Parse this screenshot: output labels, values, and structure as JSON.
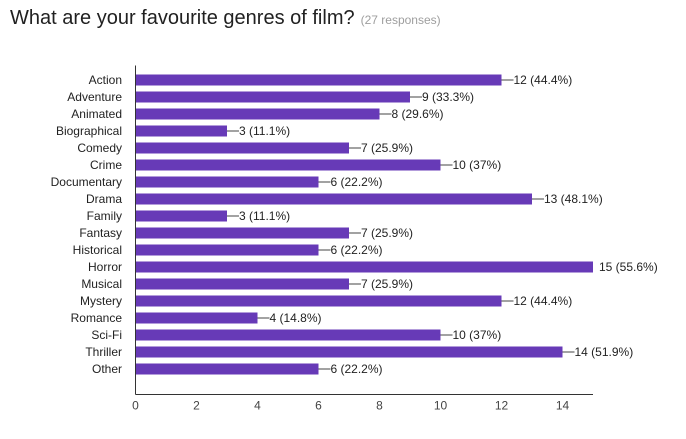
{
  "header": {
    "title": "What are your favourite genres of film?",
    "responses": "(27 responses)"
  },
  "colors": {
    "bar": "#673ab7",
    "axis": "#333333",
    "leader": "#444444"
  },
  "chart_data": {
    "type": "bar",
    "orientation": "horizontal",
    "title": "What are your favourite genres of film?",
    "subtitle": "(27 responses)",
    "xlabel": "",
    "ylabel": "",
    "categories": [
      "Action",
      "Adventure",
      "Animated",
      "Biographical",
      "Comedy",
      "Crime",
      "Documentary",
      "Drama",
      "Family",
      "Fantasy",
      "Historical",
      "Horror",
      "Musical",
      "Mystery",
      "Romance",
      "Sci-Fi",
      "Thriller",
      "Other"
    ],
    "values": [
      12,
      9,
      8,
      3,
      7,
      10,
      6,
      13,
      3,
      7,
      6,
      15,
      7,
      12,
      4,
      10,
      14,
      6
    ],
    "data_labels": [
      "12 (44.4%)",
      "9 (33.3%)",
      "8 (29.6%)",
      "3 (11.1%)",
      "7 (25.9%)",
      "10 (37%)",
      "6 (22.2%)",
      "13 (48.1%)",
      "3 (11.1%)",
      "7 (25.9%)",
      "6 (22.2%)",
      "15 (55.6%)",
      "7 (25.9%)",
      "12 (44.4%)",
      "4 (14.8%)",
      "10 (37%)",
      "14 (51.9%)",
      "6 (22.2%)"
    ],
    "xlim": [
      0,
      15
    ],
    "xticks": [
      0,
      2,
      4,
      6,
      8,
      10,
      12,
      14
    ],
    "grid": false,
    "legend": "none"
  }
}
